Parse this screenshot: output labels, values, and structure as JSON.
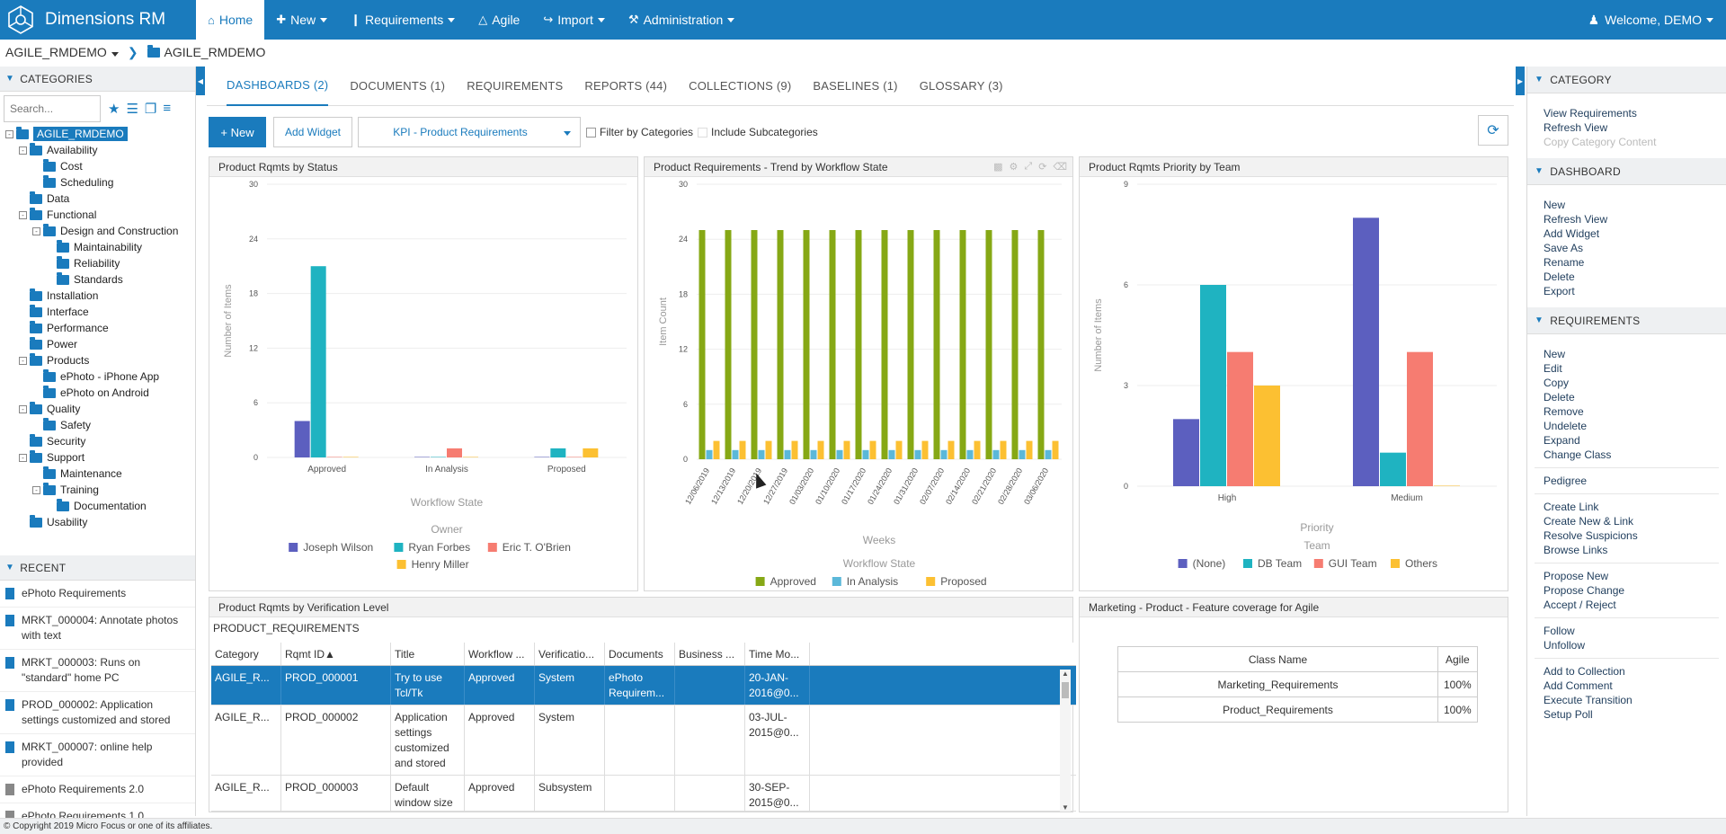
{
  "app": {
    "brand": "Dimensions RM",
    "welcome": "Welcome, DEMO"
  },
  "nav": [
    {
      "label": "Home",
      "icon": "home-icon",
      "active": true
    },
    {
      "label": "New",
      "icon": "plus-icon",
      "dropdown": true
    },
    {
      "label": "Requirements",
      "icon": "document-icon",
      "dropdown": true
    },
    {
      "label": "Agile",
      "icon": "agile-icon"
    },
    {
      "label": "Import",
      "icon": "import-icon",
      "dropdown": true
    },
    {
      "label": "Administration",
      "icon": "wrench-icon",
      "dropdown": true
    }
  ],
  "breadcrumb": {
    "project": "AGILE_RMDEMO",
    "current": "AGILE_RMDEMO"
  },
  "categories": {
    "title": "CATEGORIES",
    "search_placeholder": "Search...",
    "tree": [
      {
        "label": "AGILE_RMDEMO",
        "level": 0,
        "toggle": "-",
        "selected": true
      },
      {
        "label": "Availability",
        "level": 1,
        "toggle": "-"
      },
      {
        "label": "Cost",
        "level": 2,
        "toggle": ""
      },
      {
        "label": "Scheduling",
        "level": 2,
        "toggle": ""
      },
      {
        "label": "Data",
        "level": 1,
        "toggle": ""
      },
      {
        "label": "Functional",
        "level": 1,
        "toggle": "-"
      },
      {
        "label": "Design and Construction",
        "level": 2,
        "toggle": "-"
      },
      {
        "label": "Maintainability",
        "level": 3,
        "toggle": ""
      },
      {
        "label": "Reliability",
        "level": 3,
        "toggle": ""
      },
      {
        "label": "Standards",
        "level": 3,
        "toggle": ""
      },
      {
        "label": "Installation",
        "level": 1,
        "toggle": ""
      },
      {
        "label": "Interface",
        "level": 1,
        "toggle": ""
      },
      {
        "label": "Performance",
        "level": 1,
        "toggle": ""
      },
      {
        "label": "Power",
        "level": 1,
        "toggle": ""
      },
      {
        "label": "Products",
        "level": 1,
        "toggle": "-"
      },
      {
        "label": "ePhoto - iPhone App",
        "level": 2,
        "toggle": ""
      },
      {
        "label": "ePhoto on Android",
        "level": 2,
        "toggle": ""
      },
      {
        "label": "Quality",
        "level": 1,
        "toggle": "-"
      },
      {
        "label": "Safety",
        "level": 2,
        "toggle": ""
      },
      {
        "label": "Security",
        "level": 1,
        "toggle": ""
      },
      {
        "label": "Support",
        "level": 1,
        "toggle": "-"
      },
      {
        "label": "Maintenance",
        "level": 2,
        "toggle": ""
      },
      {
        "label": "Training",
        "level": 2,
        "toggle": "-"
      },
      {
        "label": "Documentation",
        "level": 3,
        "toggle": ""
      },
      {
        "label": "Usability",
        "level": 1,
        "toggle": ""
      }
    ]
  },
  "recent": {
    "title": "RECENT",
    "items": [
      {
        "label": "ePhoto Requirements",
        "type": "doc"
      },
      {
        "label": "MRKT_000004: Annotate photos with text",
        "type": "doc"
      },
      {
        "label": "MRKT_000003: Runs on \"standard\" home PC",
        "type": "doc"
      },
      {
        "label": "PROD_000002: Application settings customized and stored",
        "type": "doc"
      },
      {
        "label": "MRKT_000007: online help provided",
        "type": "doc"
      },
      {
        "label": "ePhoto Requirements 2.0",
        "type": "baseline"
      },
      {
        "label": "ePhoto Requirements 1.0",
        "type": "baseline"
      }
    ]
  },
  "tabs": [
    {
      "label": "DASHBOARDS (2)",
      "active": true
    },
    {
      "label": "DOCUMENTS (1)"
    },
    {
      "label": "REQUIREMENTS"
    },
    {
      "label": "REPORTS (44)"
    },
    {
      "label": "COLLECTIONS (9)"
    },
    {
      "label": "BASELINES (1)"
    },
    {
      "label": "GLOSSARY (3)"
    }
  ],
  "toolbar": {
    "new_label": "New",
    "add_widget_label": "Add Widget",
    "dashboard_select": "KPI - Product Requirements",
    "filter_label": "Filter by Categories",
    "subcat_label": "Include Subcategories"
  },
  "widgets": {
    "status": {
      "title": "Product Rqmts by Status"
    },
    "trend": {
      "title": "Product Requirements - Trend by Workflow State"
    },
    "priority": {
      "title": "Product Rqmts Priority by Team"
    },
    "verification": {
      "title": "Product Rqmts by Verification Level"
    },
    "coverage": {
      "title": "Marketing - Product - Feature coverage for Agile"
    }
  },
  "chart_data": [
    {
      "type": "bar",
      "ylabel": "Number of Items",
      "xlabel": "Workflow State",
      "ylim": [
        0,
        30
      ],
      "yticks": [
        0,
        6,
        12,
        18,
        24,
        30
      ],
      "categories": [
        "Approved",
        "In Analysis",
        "Proposed"
      ],
      "legend_title": "Owner",
      "series": [
        {
          "name": "Joseph Wilson",
          "color": "#5c5fbf",
          "values": [
            4,
            0,
            0
          ]
        },
        {
          "name": "Ryan Forbes",
          "color": "#1fb3c1",
          "values": [
            21,
            0,
            1
          ]
        },
        {
          "name": "Eric T. O'Brien",
          "color": "#f67c71",
          "values": [
            0,
            1,
            0
          ]
        },
        {
          "name": "Henry Miller",
          "color": "#fcc032",
          "values": [
            0,
            0,
            1
          ]
        }
      ]
    },
    {
      "type": "bar",
      "ylabel": "Item Count",
      "xlabel": "Weeks",
      "ylim": [
        0,
        30
      ],
      "yticks": [
        0,
        6,
        12,
        18,
        24,
        30
      ],
      "categories": [
        "12/06/2019",
        "12/13/2019",
        "12/20/2019",
        "12/27/2019",
        "01/03/2020",
        "01/10/2020",
        "01/17/2020",
        "01/24/2020",
        "01/31/2020",
        "02/07/2020",
        "02/14/2020",
        "02/21/2020",
        "02/28/2020",
        "03/06/2020"
      ],
      "legend_title": "Workflow State",
      "series": [
        {
          "name": "Approved",
          "color": "#86a815",
          "values": [
            25,
            25,
            25,
            25,
            25,
            25,
            25,
            25,
            25,
            25,
            25,
            25,
            25,
            25
          ]
        },
        {
          "name": "In Analysis",
          "color": "#5bb8d9",
          "values": [
            1,
            1,
            1,
            1,
            1,
            1,
            1,
            1,
            1,
            1,
            1,
            1,
            1,
            1
          ]
        },
        {
          "name": "Proposed",
          "color": "#fcc032",
          "values": [
            2,
            2,
            2,
            2,
            2,
            2,
            2,
            2,
            2,
            2,
            2,
            2,
            2,
            2
          ]
        }
      ]
    },
    {
      "type": "bar",
      "ylabel": "Number of Items",
      "xlabel": "Priority",
      "ylim": [
        0,
        9
      ],
      "yticks": [
        0,
        3,
        6,
        9
      ],
      "categories": [
        "High",
        "Medium"
      ],
      "legend_title": "Team",
      "series": [
        {
          "name": "(None)",
          "color": "#5c5fbf",
          "values": [
            2,
            8
          ]
        },
        {
          "name": "DB Team",
          "color": "#1fb3c1",
          "values": [
            6,
            1
          ]
        },
        {
          "name": "GUI Team",
          "color": "#f67c71",
          "values": [
            4,
            4
          ]
        },
        {
          "name": "Others",
          "color": "#fcc032",
          "values": [
            3,
            0
          ]
        }
      ]
    }
  ],
  "verification_table": {
    "caption": "PRODUCT_REQUIREMENTS",
    "columns": [
      "Category",
      "Rqmt ID▲",
      "Title",
      "Workflow ...",
      "Verificatio...",
      "Documents",
      "Business ...",
      "Time Mo..."
    ],
    "rows": [
      [
        "AGILE_R...",
        "PROD_000001",
        "Try to use Tcl/Tk",
        "Approved",
        "System",
        "ePhoto Requirem...",
        "",
        "20-JAN-2016@0..."
      ],
      [
        "AGILE_R...",
        "PROD_000002",
        "Application settings customized and stored",
        "Approved",
        "System",
        "",
        "",
        "03-JUL-2015@0..."
      ],
      [
        "AGILE_R...",
        "PROD_000003",
        "Default window size",
        "Approved",
        "Subsystem",
        "",
        "",
        "30-SEP-2015@0..."
      ]
    ]
  },
  "coverage_table": {
    "columns": [
      "Class Name",
      "Agile"
    ],
    "rows": [
      [
        "Marketing_Requirements",
        "100%"
      ],
      [
        "Product_Requirements",
        "100%"
      ]
    ]
  },
  "rightpanel": {
    "category": {
      "title": "CATEGORY",
      "groups": [
        [
          {
            "label": "View Requirements"
          },
          {
            "label": "Refresh View"
          },
          {
            "label": "Copy Category Content",
            "disabled": true
          }
        ]
      ]
    },
    "dashboard": {
      "title": "DASHBOARD",
      "groups": [
        [
          {
            "label": "New"
          },
          {
            "label": "Refresh View"
          },
          {
            "label": "Add Widget"
          },
          {
            "label": "Save As"
          },
          {
            "label": "Rename"
          },
          {
            "label": "Delete"
          },
          {
            "label": "Export"
          }
        ]
      ]
    },
    "requirements": {
      "title": "REQUIREMENTS",
      "groups": [
        [
          {
            "label": "New"
          },
          {
            "label": "Edit"
          },
          {
            "label": "Copy"
          },
          {
            "label": "Delete"
          },
          {
            "label": "Remove"
          },
          {
            "label": "Undelete"
          },
          {
            "label": "Expand"
          },
          {
            "label": "Change Class"
          }
        ],
        [
          {
            "label": "Pedigree"
          }
        ],
        [
          {
            "label": "Create Link"
          },
          {
            "label": "Create New & Link"
          },
          {
            "label": "Resolve Suspicions"
          },
          {
            "label": "Browse Links"
          }
        ],
        [
          {
            "label": "Propose New"
          },
          {
            "label": "Propose Change"
          },
          {
            "label": "Accept / Reject"
          }
        ],
        [
          {
            "label": "Follow"
          },
          {
            "label": "Unfollow"
          }
        ],
        [
          {
            "label": "Add to Collection"
          },
          {
            "label": "Add Comment"
          },
          {
            "label": "Execute Transition"
          },
          {
            "label": "Setup Poll"
          }
        ]
      ]
    }
  },
  "footer": "© Copyright 2019 Micro Focus or one of its affiliates."
}
